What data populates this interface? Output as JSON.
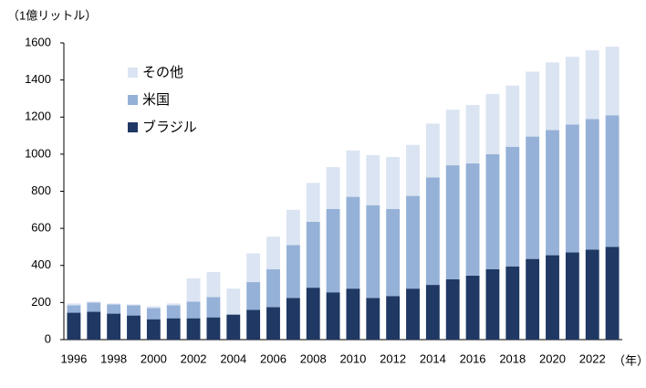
{
  "chart_data": {
    "type": "stacked-bar",
    "y_label": "（1億リットル）",
    "x_label": "（年）",
    "categories": [
      "1996",
      null,
      "1998",
      null,
      "2000",
      null,
      "2002",
      null,
      "2004",
      null,
      "2006",
      null,
      "2008",
      null,
      "2010",
      null,
      "2012",
      null,
      "2014",
      null,
      "2016",
      null,
      "2018",
      null,
      "2020",
      null,
      "2022",
      null
    ],
    "series": [
      {
        "name": "ブラジル",
        "color": "#1f3864",
        "values": [
          145,
          150,
          140,
          130,
          110,
          115,
          115,
          120,
          135,
          160,
          175,
          225,
          280,
          255,
          275,
          225,
          235,
          275,
          295,
          325,
          345,
          380,
          395,
          435,
          455,
          470,
          485,
          500
        ]
      },
      {
        "name": "米国",
        "color": "#95b1d7",
        "values": [
          40,
          50,
          50,
          55,
          60,
          70,
          90,
          110,
          0,
          150,
          205,
          285,
          355,
          450,
          495,
          500,
          470,
          500,
          580,
          615,
          605,
          620,
          645,
          660,
          675,
          690,
          705,
          710
        ]
      },
      {
        "name": "その他",
        "color": "#dbe4f2",
        "values": [
          10,
          5,
          5,
          5,
          10,
          10,
          125,
          135,
          140,
          155,
          175,
          190,
          210,
          225,
          250,
          270,
          280,
          275,
          290,
          300,
          315,
          325,
          330,
          350,
          365,
          365,
          370,
          370
        ]
      }
    ],
    "ylim": [
      0,
      1600
    ],
    "yticks": [
      0,
      200,
      400,
      600,
      800,
      1000,
      1200,
      1400,
      1600
    ]
  }
}
